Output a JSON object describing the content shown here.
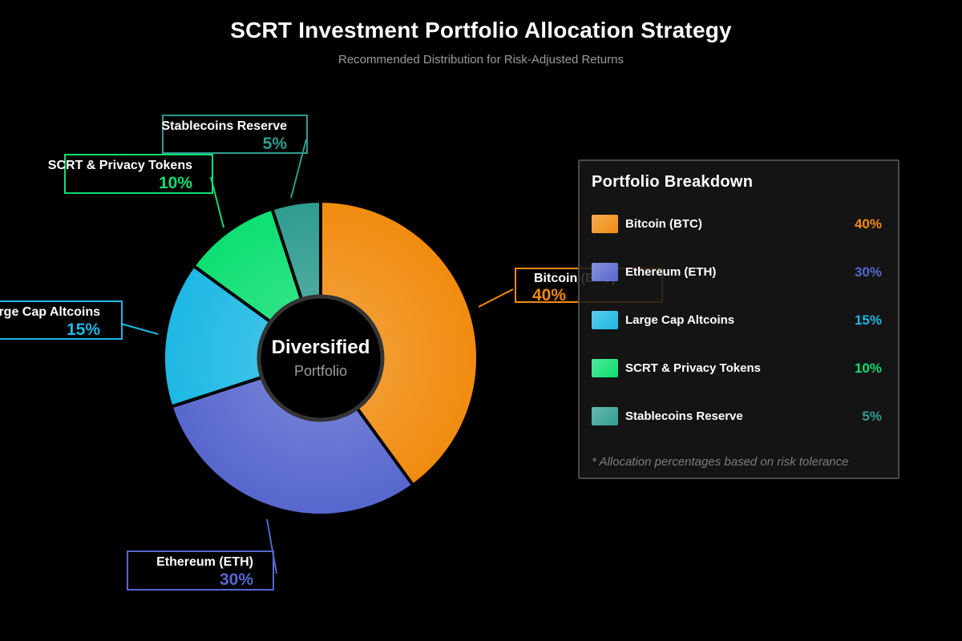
{
  "header": {
    "title": "SCRT Investment Portfolio Allocation Strategy",
    "subtitle": "Recommended Distribution for Risk-Adjusted Returns"
  },
  "legend": {
    "title": "Portfolio Breakdown",
    "footnote": "* Allocation percentages based on risk tolerance",
    "position": "right"
  },
  "chart_data": {
    "type": "pie",
    "donut": true,
    "hole_ratio": 0.39,
    "start_angle": "12 o'clock, clockwise",
    "title": "SCRT Investment Portfolio Allocation Strategy",
    "subtitle": "Recommended Distribution for Risk-Adjusted Returns",
    "unit": "%",
    "center_label": {
      "line1": "Diversified",
      "line2": "Portfolio"
    },
    "segments": [
      {
        "label": "Bitcoin (BTC)",
        "value": 40,
        "pct_label": "40%",
        "color": "#F18B0F"
      },
      {
        "label": "Ethereum (ETH)",
        "value": 30,
        "pct_label": "30%",
        "color": "#5767CE"
      },
      {
        "label": "Large Cap Altcoins",
        "value": 15,
        "pct_label": "15%",
        "color": "#1CB8E4"
      },
      {
        "label": "SCRT & Privacy Tokens",
        "value": 10,
        "pct_label": "10%",
        "color": "#0CDF72"
      },
      {
        "label": "Stablecoins Reserve",
        "value": 5,
        "pct_label": "5%",
        "color": "#2F9C90"
      }
    ],
    "annotation": "* Allocation percentages based on risk tolerance"
  }
}
